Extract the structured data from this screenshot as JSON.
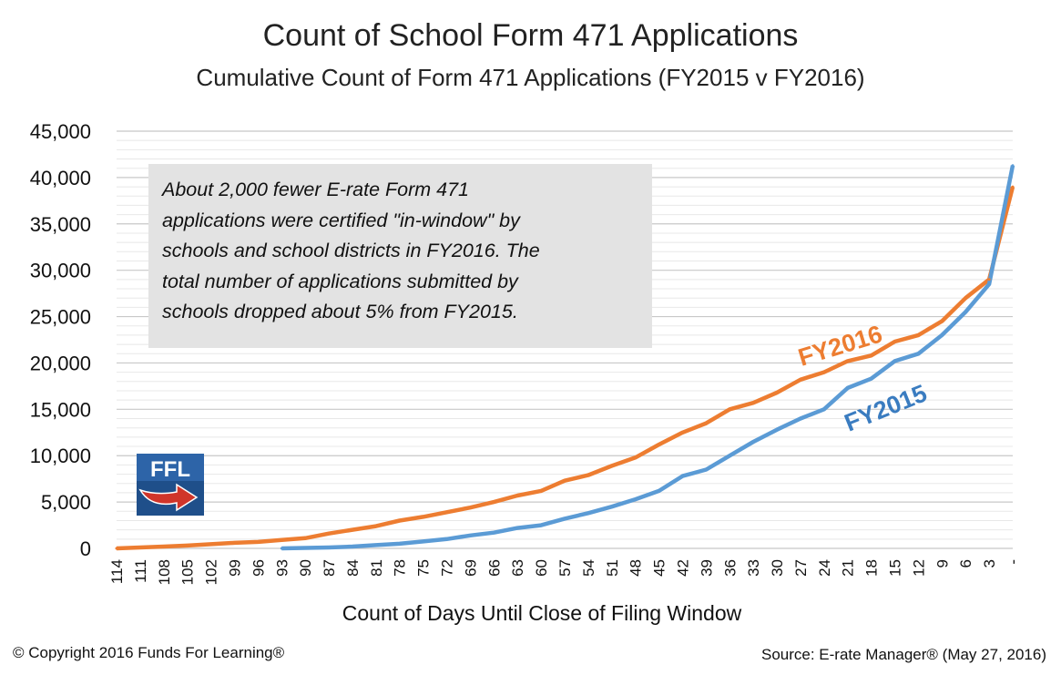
{
  "chart_data": {
    "type": "line",
    "title": "Count of School Form 471 Applications",
    "subtitle": "Cumulative Count of Form 471 Applications (FY2015 v FY2016)",
    "xlabel": "Count of Days Until Close of Filing Window",
    "ylabel": "",
    "ylim": [
      0,
      45000
    ],
    "yticks": [
      0,
      5000,
      10000,
      15000,
      20000,
      25000,
      30000,
      35000,
      40000,
      45000
    ],
    "ytick_labels": [
      "0",
      "5,000",
      "10,000",
      "15,000",
      "20,000",
      "25,000",
      "30,000",
      "35,000",
      "40,000",
      "45,000"
    ],
    "x_tick_labels": [
      "114",
      "111",
      "108",
      "105",
      "102",
      "99",
      "96",
      "93",
      "90",
      "87",
      "84",
      "81",
      "78",
      "75",
      "72",
      "69",
      "66",
      "63",
      "60",
      "57",
      "54",
      "51",
      "48",
      "45",
      "42",
      "39",
      "36",
      "33",
      "30",
      "27",
      "24",
      "21",
      "18",
      "15",
      "12",
      "9",
      "6",
      "3",
      "-"
    ],
    "grid": "horizontal",
    "series": [
      {
        "name": "FY2016",
        "color": "#ed7d31",
        "x": [
          114,
          111,
          108,
          105,
          102,
          99,
          96,
          93,
          90,
          87,
          84,
          81,
          78,
          75,
          72,
          69,
          66,
          63,
          60,
          57,
          54,
          51,
          48,
          45,
          42,
          39,
          36,
          33,
          30,
          27,
          24,
          21,
          18,
          15,
          12,
          9,
          6,
          3,
          0
        ],
        "values": [
          0,
          100,
          200,
          300,
          450,
          600,
          700,
          900,
          1100,
          1600,
          2000,
          2400,
          3000,
          3400,
          3900,
          4400,
          5000,
          5700,
          6200,
          7300,
          7900,
          8900,
          9800,
          11200,
          12500,
          13500,
          15000,
          15700,
          16800,
          18200,
          19000,
          20200,
          20800,
          22300,
          23000,
          24500,
          27000,
          29000,
          39000
        ]
      },
      {
        "name": "FY2015",
        "color": "#5b9bd5",
        "x": [
          93,
          90,
          87,
          84,
          81,
          78,
          75,
          72,
          69,
          66,
          63,
          60,
          57,
          54,
          51,
          48,
          45,
          42,
          39,
          36,
          33,
          30,
          27,
          24,
          21,
          18,
          15,
          12,
          9,
          6,
          3,
          0
        ],
        "values": [
          0,
          50,
          100,
          200,
          350,
          500,
          750,
          1000,
          1400,
          1700,
          2200,
          2500,
          3200,
          3800,
          4500,
          5300,
          6200,
          7800,
          8500,
          10000,
          11500,
          12800,
          14000,
          15000,
          17300,
          18300,
          20200,
          21000,
          23000,
          25500,
          28500,
          41300
        ]
      }
    ],
    "series_labels": [
      "FY2016",
      "FY2015"
    ],
    "annotation": "About 2,000 fewer E-rate Form 471\napplications were certified \"in-window\" by\nschools and school districts in FY2016. The\ntotal number of applications submitted by\nschools dropped about 5% from FY2015."
  },
  "logo_text": "FFL",
  "footer": {
    "copyright": "© Copyright 2016 Funds For Learning®",
    "source": "Source: E-rate Manager® (May 27, 2016)"
  }
}
